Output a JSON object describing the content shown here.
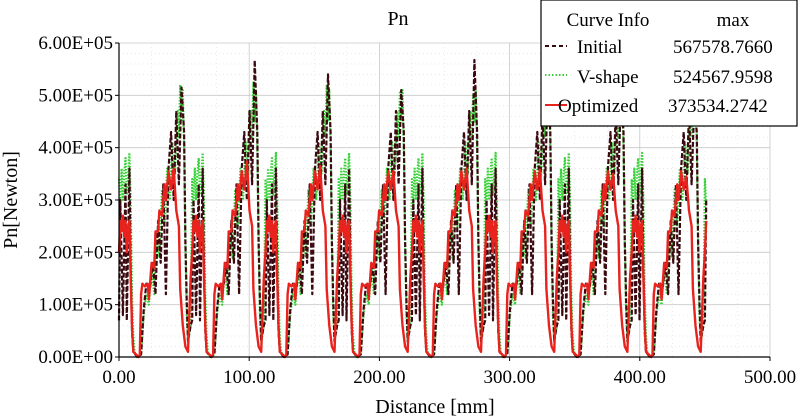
{
  "chart_data": {
    "type": "line",
    "title": "Pn",
    "xlabel": "Distance [mm]",
    "ylabel": "Pn[Newton]",
    "xlim": [
      0,
      500
    ],
    "ylim": [
      0,
      600000
    ],
    "x_ticks": [
      {
        "value": 0,
        "label": "0.00"
      },
      {
        "value": 100,
        "label": "100.00"
      },
      {
        "value": 200,
        "label": "200.00"
      },
      {
        "value": 300,
        "label": "300.00"
      },
      {
        "value": 400,
        "label": "400.00"
      },
      {
        "value": 500,
        "label": "500.00"
      }
    ],
    "y_ticks": [
      {
        "value": 0,
        "label": "0.00E+00"
      },
      {
        "value": 100000,
        "label": "1.00E+05"
      },
      {
        "value": 200000,
        "label": "2.00E+05"
      },
      {
        "value": 300000,
        "label": "3.00E+05"
      },
      {
        "value": 400000,
        "label": "4.00E+05"
      },
      {
        "value": 500000,
        "label": "5.00E+05"
      },
      {
        "value": 600000,
        "label": "6.00E+05"
      }
    ],
    "grid": true,
    "period": 56.25,
    "x_range": [
      0,
      451
    ],
    "legend": {
      "placement": "top-right",
      "header_name": "Curve Info",
      "header_value": "max",
      "entries": [
        {
          "name": "Initial",
          "max": "567578.7660",
          "color": "#3a0a10",
          "style": "dashed"
        },
        {
          "name": "V-shape",
          "max": "524567.9598",
          "color": "#35d035",
          "style": "dotted"
        },
        {
          "name": "Optimized",
          "max": "373534.2742",
          "color": "#e8231e",
          "style": "solid"
        }
      ]
    },
    "series": [
      {
        "name": "Initial",
        "color": "#3a0a10",
        "points": [
          [
            0,
            70000
          ],
          [
            1,
            300000
          ],
          [
            3,
            80000
          ],
          [
            5,
            330000
          ],
          [
            6,
            70000
          ],
          [
            8,
            360000
          ],
          [
            9,
            170000
          ],
          [
            10,
            50000
          ],
          [
            11,
            10000
          ],
          [
            14,
            0
          ],
          [
            17,
            5000
          ],
          [
            19,
            90000
          ],
          [
            21,
            140000
          ],
          [
            24,
            135000
          ],
          [
            26,
            180000
          ],
          [
            28,
            120000
          ],
          [
            30,
            260000
          ],
          [
            32,
            180000
          ],
          [
            34,
            330000
          ],
          [
            36,
            120000
          ],
          [
            38,
            360000
          ],
          [
            40,
            430000
          ],
          [
            42,
            300000
          ],
          [
            44,
            470000
          ],
          [
            46,
            330000
          ],
          [
            48,
            500000
          ],
          [
            50,
            430000
          ],
          [
            51,
            220000
          ],
          [
            52,
            110000
          ],
          [
            53,
            30000
          ],
          [
            55,
            60000
          ],
          [
            56.25,
            70000
          ]
        ],
        "cycle_peaks": [
          515000,
          567000,
          540000,
          510000,
          567578.766,
          520000,
          505000,
          480000
        ]
      },
      {
        "name": "V-shape",
        "color": "#35d035",
        "points": [
          [
            0,
            340000
          ],
          [
            1,
            290000
          ],
          [
            2,
            360000
          ],
          [
            3,
            300000
          ],
          [
            4,
            350000
          ],
          [
            5,
            380000
          ],
          [
            6,
            310000
          ],
          [
            7,
            345000
          ],
          [
            8,
            390000
          ],
          [
            9,
            300000
          ],
          [
            10,
            120000
          ],
          [
            11,
            40000
          ],
          [
            12,
            10000
          ],
          [
            14,
            0
          ],
          [
            17,
            5000
          ],
          [
            19,
            80000
          ],
          [
            21,
            120000
          ],
          [
            23,
            100000
          ],
          [
            25,
            170000
          ],
          [
            27,
            120000
          ],
          [
            29,
            240000
          ],
          [
            31,
            190000
          ],
          [
            33,
            320000
          ],
          [
            35,
            250000
          ],
          [
            37,
            360000
          ],
          [
            39,
            300000
          ],
          [
            41,
            410000
          ],
          [
            43,
            350000
          ],
          [
            45,
            470000
          ],
          [
            46,
            420000
          ],
          [
            47,
            520000
          ],
          [
            48,
            450000
          ],
          [
            49,
            510000
          ],
          [
            50,
            400000
          ],
          [
            51,
            220000
          ],
          [
            52,
            80000
          ],
          [
            53,
            30000
          ],
          [
            55,
            60000
          ],
          [
            56.25,
            340000
          ]
        ],
        "cycle_peaks": [
          520000,
          524567.9598,
          518000,
          505000,
          500000,
          510000,
          495000,
          485000
        ]
      },
      {
        "name": "Optimized",
        "color": "#e8231e",
        "points": [
          [
            0,
            200000
          ],
          [
            1,
            260000
          ],
          [
            2,
            240000
          ],
          [
            3,
            270000
          ],
          [
            4,
            230000
          ],
          [
            5,
            260000
          ],
          [
            6,
            200000
          ],
          [
            7,
            250000
          ],
          [
            8,
            260000
          ],
          [
            9,
            150000
          ],
          [
            10,
            60000
          ],
          [
            11,
            10000
          ],
          [
            13,
            5000
          ],
          [
            15,
            0
          ],
          [
            16,
            5000
          ],
          [
            17,
            120000
          ],
          [
            18,
            140000
          ],
          [
            20,
            135000
          ],
          [
            22,
            140000
          ],
          [
            23,
            110000
          ],
          [
            25,
            180000
          ],
          [
            27,
            170000
          ],
          [
            28,
            240000
          ],
          [
            30,
            240000
          ],
          [
            31,
            280000
          ],
          [
            33,
            270000
          ],
          [
            35,
            330000
          ],
          [
            36,
            300000
          ],
          [
            38,
            355000
          ],
          [
            40,
            320000
          ],
          [
            42,
            360000
          ],
          [
            44,
            280000
          ],
          [
            46,
            250000
          ],
          [
            47,
            130000
          ],
          [
            49,
            60000
          ],
          [
            51,
            20000
          ],
          [
            53,
            10000
          ],
          [
            55,
            150000
          ],
          [
            56.25,
            200000
          ]
        ],
        "cycle_peaks": [
          360000,
          373534.2742,
          365000,
          355000,
          360000,
          358000,
          350000,
          345000
        ]
      }
    ]
  }
}
